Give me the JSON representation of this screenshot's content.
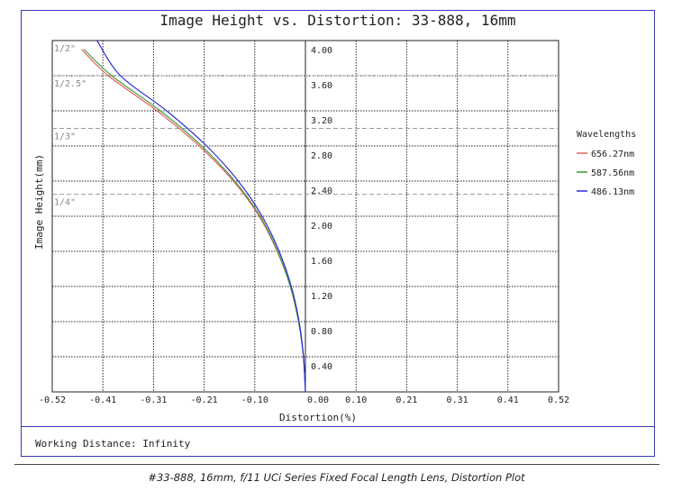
{
  "figure": {
    "title": "Image Height vs. Distortion: 33-888, 16mm",
    "footer": "Working Distance: Infinity",
    "caption": "#33-888, 16mm, f/11 UCi Series Fixed Focal Length Lens, Distortion Plot"
  },
  "chart_data": {
    "type": "line",
    "title": "Image Height vs. Distortion: 33-888, 16mm",
    "xlabel": "Distortion(%)",
    "ylabel": "Image Height(mm)",
    "xlim": [
      -0.52,
      0.52
    ],
    "ylim": [
      0,
      4.0
    ],
    "x_ticks": [
      "-0.52",
      "-0.41",
      "-0.31",
      "-0.21",
      "-0.10",
      "0.00",
      "0.10",
      "0.21",
      "0.31",
      "0.41",
      "0.52"
    ],
    "y_ticks": [
      "0.40",
      "0.80",
      "1.20",
      "1.60",
      "2.00",
      "2.40",
      "2.80",
      "3.20",
      "3.60",
      "4.00"
    ],
    "grid": true,
    "sensor_lines": [
      {
        "label": "1/2\"",
        "y": 4.0
      },
      {
        "label": "1/2.5\"",
        "y": 3.6
      },
      {
        "label": "1/3\"",
        "y": 3.0
      },
      {
        "label": "1/4\"",
        "y": 2.25
      }
    ],
    "legend": {
      "title": "Wavelengths",
      "placement": "right"
    },
    "series": [
      {
        "name": "656.27nm",
        "color": "#e0605a",
        "points": [
          [
            0,
            0
          ],
          [
            -0.004,
            0.4
          ],
          [
            -0.014,
            0.8
          ],
          [
            -0.031,
            1.2
          ],
          [
            -0.058,
            1.6
          ],
          [
            -0.095,
            2.0
          ],
          [
            -0.148,
            2.4
          ],
          [
            -0.218,
            2.8
          ],
          [
            -0.305,
            3.2
          ],
          [
            -0.405,
            3.6
          ],
          [
            -0.46,
            3.9
          ]
        ]
      },
      {
        "name": "587.56nm",
        "color": "#3f9a3f",
        "points": [
          [
            0,
            0
          ],
          [
            -0.004,
            0.4
          ],
          [
            -0.014,
            0.8
          ],
          [
            -0.031,
            1.2
          ],
          [
            -0.057,
            1.6
          ],
          [
            -0.093,
            2.0
          ],
          [
            -0.145,
            2.4
          ],
          [
            -0.213,
            2.8
          ],
          [
            -0.298,
            3.2
          ],
          [
            -0.398,
            3.6
          ],
          [
            -0.455,
            3.9
          ]
        ]
      },
      {
        "name": "486.13nm",
        "color": "#2a2ad8",
        "points": [
          [
            0,
            0
          ],
          [
            -0.004,
            0.4
          ],
          [
            -0.013,
            0.8
          ],
          [
            -0.029,
            1.2
          ],
          [
            -0.054,
            1.6
          ],
          [
            -0.089,
            2.0
          ],
          [
            -0.138,
            2.4
          ],
          [
            -0.203,
            2.8
          ],
          [
            -0.285,
            3.2
          ],
          [
            -0.38,
            3.6
          ],
          [
            -0.428,
            4.0
          ]
        ]
      }
    ]
  }
}
